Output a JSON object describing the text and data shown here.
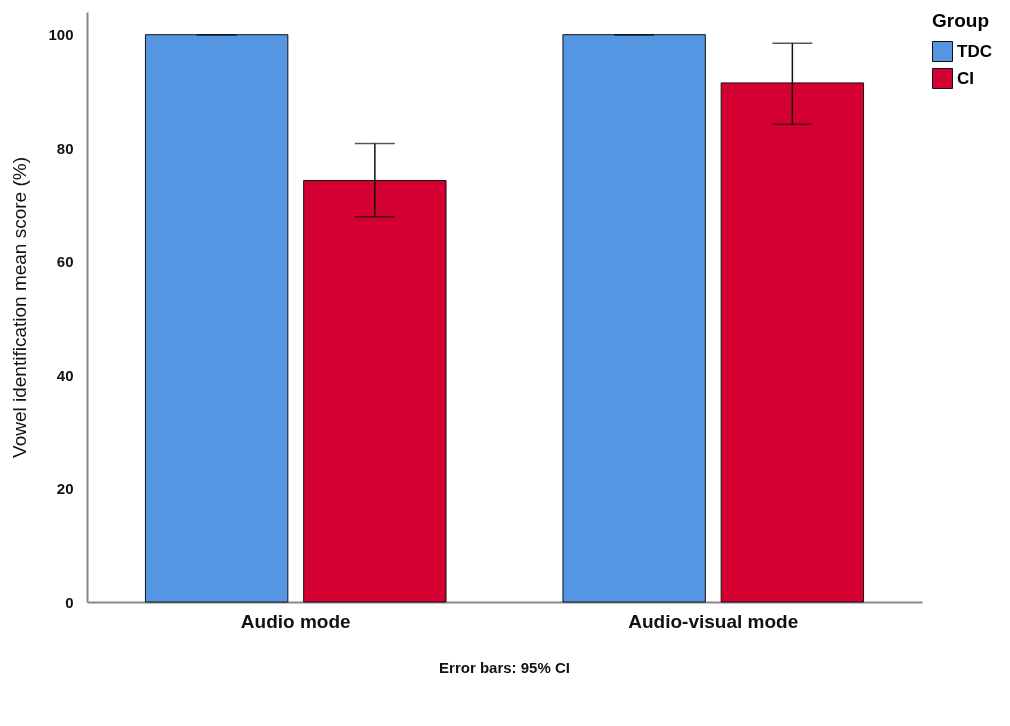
{
  "chart_data": {
    "type": "bar",
    "ylabel": "Vowel identification mean score (%)",
    "legend_title": "Group",
    "categories": [
      "Audio mode",
      "Audio-visual mode"
    ],
    "series": [
      {
        "name": "TDC",
        "color": "#5596e3",
        "values": [
          100,
          100
        ],
        "errors": [
          [
            100,
            100
          ],
          [
            100,
            100
          ]
        ]
      },
      {
        "name": "CI",
        "color": "#d50032",
        "values": [
          74.3,
          91.5
        ],
        "errors": [
          [
            67.9,
            80.8
          ],
          [
            84.2,
            98.5
          ]
        ]
      }
    ],
    "ylim": [
      0,
      104
    ],
    "yticks": [
      0,
      20,
      40,
      60,
      80,
      100
    ],
    "grid": false,
    "legend": "top right",
    "annotations": [
      "Error bars: 95% CI"
    ]
  }
}
